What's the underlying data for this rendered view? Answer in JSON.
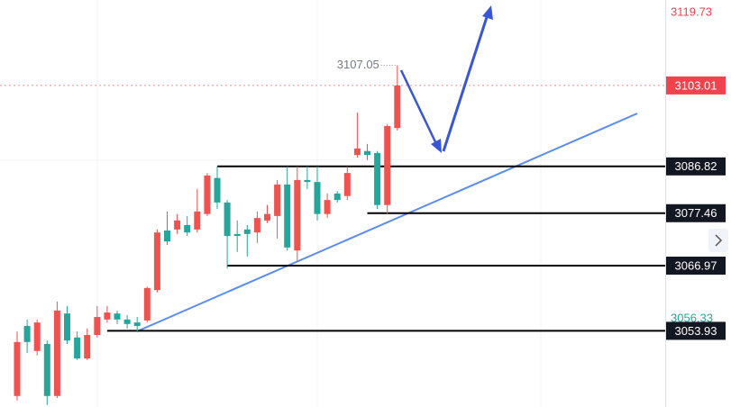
{
  "chart_data": {
    "type": "candlestick",
    "ylim": [
      3038.7,
      3120.1
    ],
    "yticks": [
      3056.33,
      3119.73
    ],
    "up_color": "#ef5350",
    "down_color": "#26a69a",
    "series": [
      {
        "open": [
          3040.9,
          3054.9,
          3049.9,
          3051.3,
          3040.9,
          3057.4,
          3052.6,
          3048.4,
          3053.1,
          3056.2,
          3057.4,
          3056.2,
          3055.6,
          3056.0,
          3062.1,
          3074.0,
          3074.2,
          3075.1,
          3074.2,
          3077.3,
          3084.5,
          3079.6,
          3073.3,
          3074.2,
          3073.6,
          3076.0,
          3076.9,
          3083.2,
          3070.0,
          3084.1,
          3083.7,
          3077.3,
          3081.4,
          3080.9,
          3089.1,
          3089.9,
          3089.5,
          3079.1,
          3094.5
        ],
        "high": [
          3053.8,
          3056.2,
          3056.2,
          3052.0,
          3059.8,
          3058.9,
          3053.8,
          3054.4,
          3058.9,
          3058.9,
          3058.0,
          3057.1,
          3056.7,
          3062.8,
          3074.2,
          3077.8,
          3077.3,
          3076.9,
          3082.3,
          3085.5,
          3086.8,
          3080.1,
          3076.0,
          3075.1,
          3077.8,
          3079.1,
          3084.1,
          3086.8,
          3086.8,
          3086.8,
          3086.8,
          3081.4,
          3081.9,
          3086.8,
          3097.6,
          3091.3,
          3089.9,
          3095.3,
          3107.05
        ],
        "low": [
          3040.0,
          3049.5,
          3049.0,
          3039.1,
          3040.5,
          3051.3,
          3048.1,
          3048.1,
          3052.6,
          3055.6,
          3055.3,
          3054.4,
          3053.8,
          3055.6,
          3061.6,
          3071.1,
          3073.3,
          3072.9,
          3073.6,
          3076.9,
          3078.3,
          3066.4,
          3069.7,
          3068.8,
          3071.5,
          3075.5,
          3072.4,
          3070.0,
          3067.9,
          3082.3,
          3076.0,
          3076.5,
          3079.6,
          3080.1,
          3088.6,
          3088.1,
          3078.3,
          3077.3,
          3094.0
        ],
        "close": [
          3051.7,
          3051.7,
          3055.6,
          3040.9,
          3058.0,
          3052.0,
          3048.4,
          3053.1,
          3056.7,
          3057.6,
          3056.2,
          3055.3,
          3054.9,
          3062.5,
          3073.6,
          3071.8,
          3076.0,
          3073.6,
          3077.8,
          3085.0,
          3079.6,
          3072.9,
          3072.9,
          3073.3,
          3076.5,
          3077.3,
          3083.2,
          3070.6,
          3084.1,
          3083.7,
          3077.3,
          3080.1,
          3080.1,
          3085.5,
          3090.4,
          3089.1,
          3079.1,
          3094.9,
          3103.01
        ]
      }
    ],
    "last_price": 3103.01,
    "last_price_color": "#f0434d",
    "high_annotation": 3107.05,
    "levels": [
      3086.82,
      3077.46,
      3066.97,
      3053.93
    ],
    "trendline_color": "#5b8def",
    "arrow_color": "#3a56d4"
  }
}
